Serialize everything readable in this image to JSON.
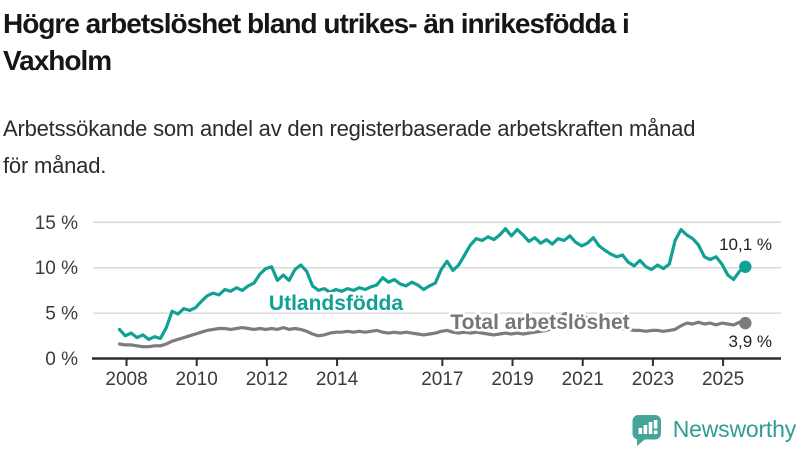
{
  "header": {
    "title_line1": "Högre arbetslöshet bland utrikes- än inrikesfödda i",
    "title_line2": "Vaxholm",
    "subtitle_line1": "Arbetssökande som andel av den registerbaserade arbetskraften månad",
    "subtitle_line2": "för månad."
  },
  "chart_data": {
    "type": "line",
    "title": "Högre arbetslöshet bland utrikes- än inrikesfödda i Vaxholm",
    "subtitle": "Arbetssökande som andel av den registerbaserade arbetskraften månad för månad.",
    "ylabel": "",
    "xlabel": "",
    "grid": "horizontal",
    "legend_position": "inline-labels",
    "ylim": [
      0,
      15
    ],
    "xlim": [
      2007.8,
      2025.633
    ],
    "y_ticks": [
      0,
      5,
      10,
      15
    ],
    "y_tick_labels": [
      "0 %",
      "5 %",
      "10 %",
      "15 %"
    ],
    "x_ticks": [
      2008,
      2010,
      2012,
      2014,
      2017,
      2019,
      2021,
      2023,
      2025
    ],
    "x_tick_labels": [
      "2008",
      "2010",
      "2012",
      "2014",
      "2017",
      "2019",
      "2021",
      "2023",
      "2025"
    ],
    "t_start": 2007.8,
    "t_step": 0.16667,
    "series": [
      {
        "name": "Utlandsfödda",
        "color": "#0fa294",
        "end_value": 10.1,
        "end_label": "10,1 %",
        "values": [
          3.2,
          2.5,
          2.8,
          2.3,
          2.6,
          2.1,
          2.4,
          2.2,
          3.4,
          5.2,
          4.9,
          5.5,
          5.3,
          5.6,
          6.3,
          6.9,
          7.2,
          7.0,
          7.6,
          7.4,
          7.8,
          7.5,
          8.0,
          8.3,
          9.3,
          9.9,
          10.1,
          8.6,
          9.2,
          8.6,
          9.8,
          10.3,
          9.6,
          8.0,
          7.5,
          7.7,
          7.3,
          7.6,
          7.4,
          7.7,
          7.5,
          7.8,
          7.6,
          7.9,
          8.1,
          8.9,
          8.4,
          8.7,
          8.2,
          8.0,
          8.4,
          8.1,
          7.6,
          8.0,
          8.3,
          9.8,
          10.7,
          9.7,
          10.3,
          11.4,
          12.5,
          13.2,
          13.0,
          13.4,
          13.1,
          13.6,
          14.3,
          13.5,
          14.2,
          13.6,
          12.9,
          13.3,
          12.7,
          13.1,
          12.6,
          13.2,
          13.0,
          13.5,
          12.8,
          12.4,
          12.7,
          13.3,
          12.4,
          11.9,
          11.5,
          11.2,
          11.4,
          10.6,
          10.2,
          10.8,
          10.1,
          9.8,
          10.3,
          9.9,
          10.4,
          13.0,
          14.2,
          13.6,
          13.2,
          12.5,
          11.2,
          10.9,
          11.2,
          10.4,
          9.2,
          8.7,
          9.6,
          10.1
        ]
      },
      {
        "name": "Total arbetslöshet",
        "color": "#7c7c7c",
        "end_value": 3.9,
        "end_label": "3,9 %",
        "values": [
          1.6,
          1.5,
          1.5,
          1.4,
          1.3,
          1.3,
          1.4,
          1.4,
          1.6,
          1.9,
          2.1,
          2.3,
          2.5,
          2.7,
          2.9,
          3.1,
          3.2,
          3.3,
          3.3,
          3.2,
          3.3,
          3.4,
          3.3,
          3.2,
          3.3,
          3.2,
          3.3,
          3.2,
          3.4,
          3.2,
          3.3,
          3.2,
          3.0,
          2.7,
          2.5,
          2.6,
          2.8,
          2.9,
          2.9,
          3.0,
          2.9,
          3.0,
          2.9,
          3.0,
          3.1,
          2.9,
          2.8,
          2.9,
          2.8,
          2.9,
          2.8,
          2.7,
          2.6,
          2.7,
          2.8,
          3.0,
          3.1,
          2.9,
          2.8,
          2.9,
          2.8,
          2.9,
          2.8,
          2.7,
          2.6,
          2.7,
          2.8,
          2.7,
          2.8,
          2.7,
          2.8,
          2.9,
          3.0,
          3.1,
          3.3,
          4.2,
          4.9,
          5.0,
          4.8,
          4.6,
          4.5,
          4.3,
          4.0,
          3.8,
          3.6,
          3.4,
          3.3,
          3.2,
          3.1,
          3.1,
          3.0,
          3.1,
          3.1,
          3.0,
          3.1,
          3.2,
          3.6,
          3.9,
          3.8,
          4.0,
          3.8,
          3.9,
          3.7,
          3.9,
          3.8,
          3.7,
          4.0,
          3.9
        ]
      }
    ]
  },
  "branding": {
    "name": "Newsworthy",
    "logo_box_color": "#46a49a",
    "logo_text_color": "#2f9d92"
  }
}
